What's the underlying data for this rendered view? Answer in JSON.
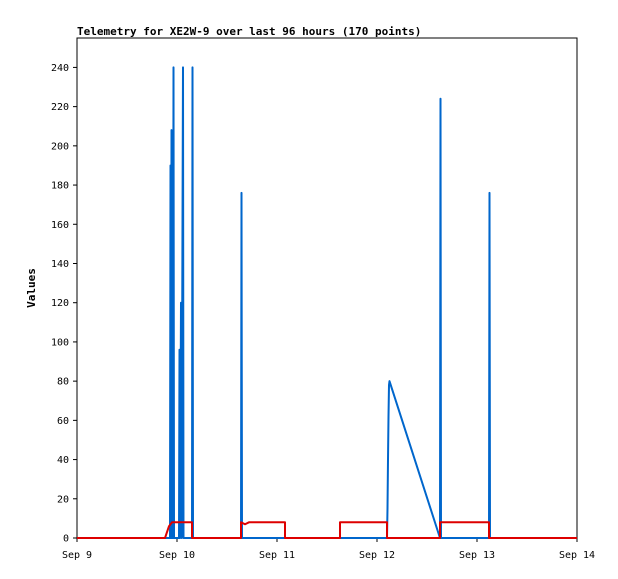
{
  "chart_data": {
    "type": "line",
    "title": "Telemetry for XE2W-9 over last 96 hours (170 points)",
    "xlabel": "",
    "ylabel": "Values",
    "x_ticks": [
      "Sep 9",
      "Sep 10",
      "Sep 11",
      "Sep 12",
      "Sep 13",
      "Sep 14"
    ],
    "y_ticks": [
      0,
      20,
      40,
      60,
      80,
      100,
      120,
      140,
      160,
      180,
      200,
      220,
      240
    ],
    "ylim": [
      0,
      255
    ],
    "xlim_days": [
      9,
      14
    ],
    "grid": false,
    "legend": "none",
    "series": [
      {
        "color": "#0066cc",
        "points": [
          [
            9.0,
            0
          ],
          [
            9.93,
            0
          ],
          [
            9.935,
            190
          ],
          [
            9.94,
            0
          ],
          [
            9.945,
            208
          ],
          [
            9.95,
            0
          ],
          [
            9.955,
            104
          ],
          [
            9.96,
            0
          ],
          [
            9.965,
            240
          ],
          [
            9.97,
            0
          ],
          [
            10.02,
            0
          ],
          [
            10.025,
            96
          ],
          [
            10.03,
            0
          ],
          [
            10.04,
            120
          ],
          [
            10.045,
            0
          ],
          [
            10.06,
            240
          ],
          [
            10.065,
            0
          ],
          [
            10.15,
            0
          ],
          [
            10.155,
            240
          ],
          [
            10.16,
            0
          ],
          [
            10.64,
            0
          ],
          [
            10.645,
            176
          ],
          [
            10.65,
            0
          ],
          [
            12.1,
            0
          ],
          [
            12.105,
            15
          ],
          [
            12.11,
            40
          ],
          [
            12.115,
            62
          ],
          [
            12.12,
            78
          ],
          [
            12.125,
            80
          ],
          [
            12.63,
            0
          ],
          [
            12.635,
            224
          ],
          [
            12.64,
            0
          ],
          [
            13.12,
            0
          ],
          [
            13.125,
            176
          ],
          [
            13.13,
            0
          ],
          [
            14.0,
            0
          ]
        ]
      },
      {
        "color": "#dd0000",
        "points": [
          [
            9.0,
            0
          ],
          [
            9.88,
            0
          ],
          [
            9.92,
            6
          ],
          [
            9.95,
            8
          ],
          [
            10.15,
            8
          ],
          [
            10.15,
            0
          ],
          [
            10.64,
            0
          ],
          [
            10.64,
            8
          ],
          [
            10.68,
            7
          ],
          [
            10.72,
            8
          ],
          [
            11.08,
            8
          ],
          [
            11.08,
            0
          ],
          [
            11.63,
            0
          ],
          [
            11.63,
            8
          ],
          [
            12.1,
            8
          ],
          [
            12.1,
            0
          ],
          [
            12.63,
            0
          ],
          [
            12.63,
            8
          ],
          [
            13.12,
            8
          ],
          [
            13.12,
            0
          ],
          [
            14.0,
            0
          ]
        ]
      }
    ]
  }
}
